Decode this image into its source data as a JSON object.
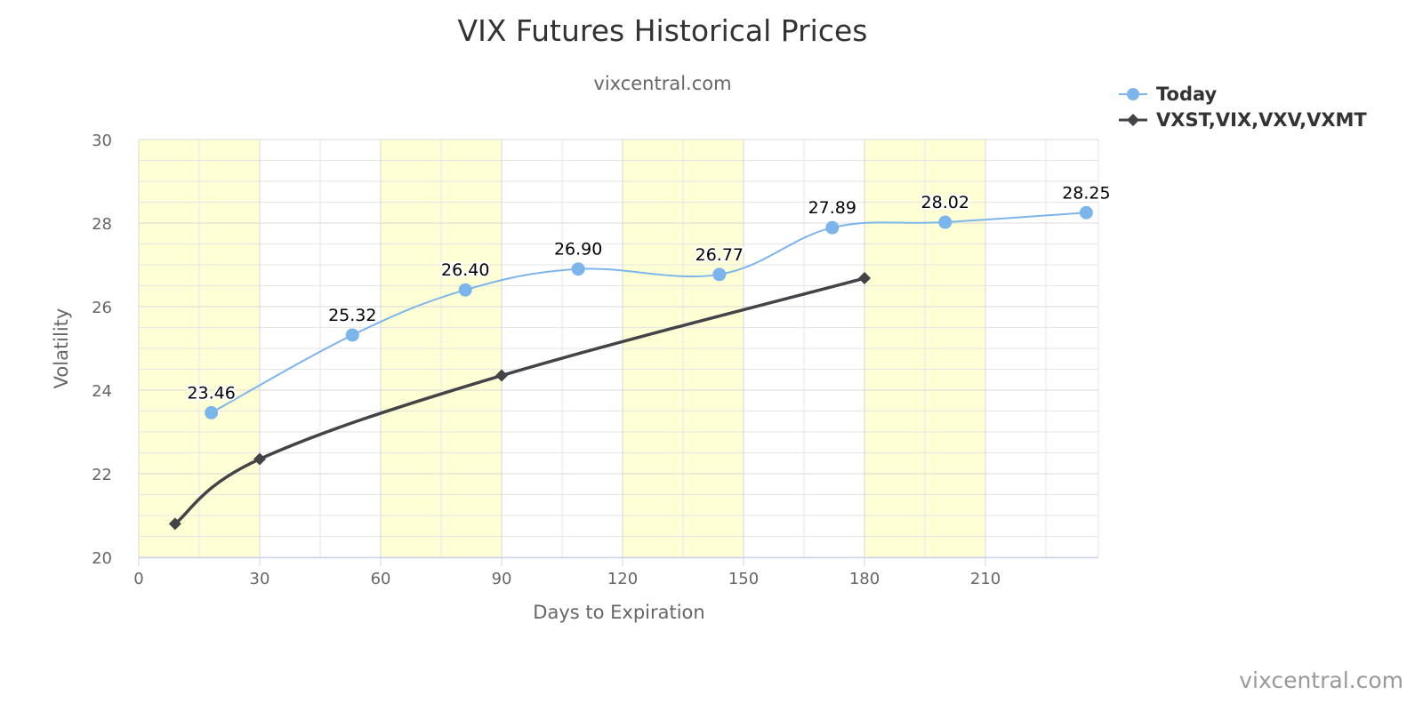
{
  "chart_data": {
    "type": "line",
    "title": "VIX Futures Historical Prices",
    "subtitle": "vixcentral.com",
    "xlabel": "Days to Expiration",
    "ylabel": "Volatility",
    "xlim": [
      0,
      238
    ],
    "ylim": [
      20,
      30
    ],
    "xticks": [
      0,
      30,
      60,
      90,
      120,
      150,
      180,
      210
    ],
    "yticks": [
      20,
      22,
      24,
      26,
      28,
      30
    ],
    "grid": true,
    "legend_position": "top-right",
    "shaded_x_bands": [
      [
        0,
        30
      ],
      [
        60,
        90
      ],
      [
        120,
        150
      ],
      [
        180,
        210
      ]
    ],
    "band_color": "#ffffd5",
    "credit": "vixcentral.com",
    "series": [
      {
        "name": "Today",
        "color": "#7cb5ec",
        "marker": "circle",
        "x": [
          18,
          53,
          81,
          109,
          144,
          172,
          200,
          235
        ],
        "values": [
          23.46,
          25.32,
          26.4,
          26.9,
          26.77,
          27.89,
          28.02,
          28.25
        ],
        "labels": [
          "23.46",
          "25.32",
          "26.40",
          "26.90",
          "26.77",
          "27.89",
          "28.02",
          "28.25"
        ]
      },
      {
        "name": "VXST,VIX,VXV,VXMT",
        "color": "#434348",
        "marker": "diamond",
        "x": [
          9,
          30,
          90,
          180
        ],
        "values": [
          20.8,
          22.35,
          24.35,
          26.68
        ]
      }
    ]
  }
}
